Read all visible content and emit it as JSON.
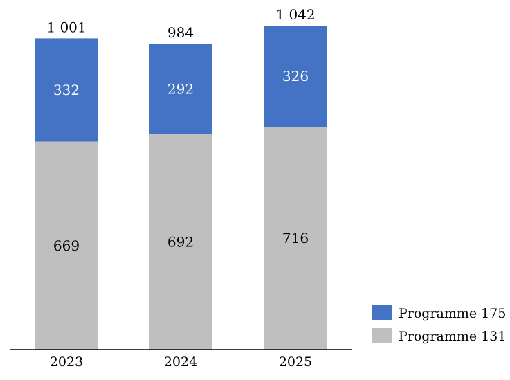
{
  "chart_data": {
    "type": "bar",
    "stacked": true,
    "categories": [
      "2023",
      "2024",
      "2025"
    ],
    "series": [
      {
        "name": "Programme 131",
        "values": [
          669,
          692,
          716
        ],
        "color": "#bfbfbf"
      },
      {
        "name": "Programme 175",
        "values": [
          332,
          292,
          326
        ],
        "color": "#4472c4"
      }
    ],
    "totals": [
      "1 001",
      "984",
      "1 042"
    ],
    "title": "",
    "xlabel": "",
    "ylabel": "",
    "ylim": [
      0,
      1042
    ],
    "grid": false,
    "legend_position": "bottom-right"
  }
}
